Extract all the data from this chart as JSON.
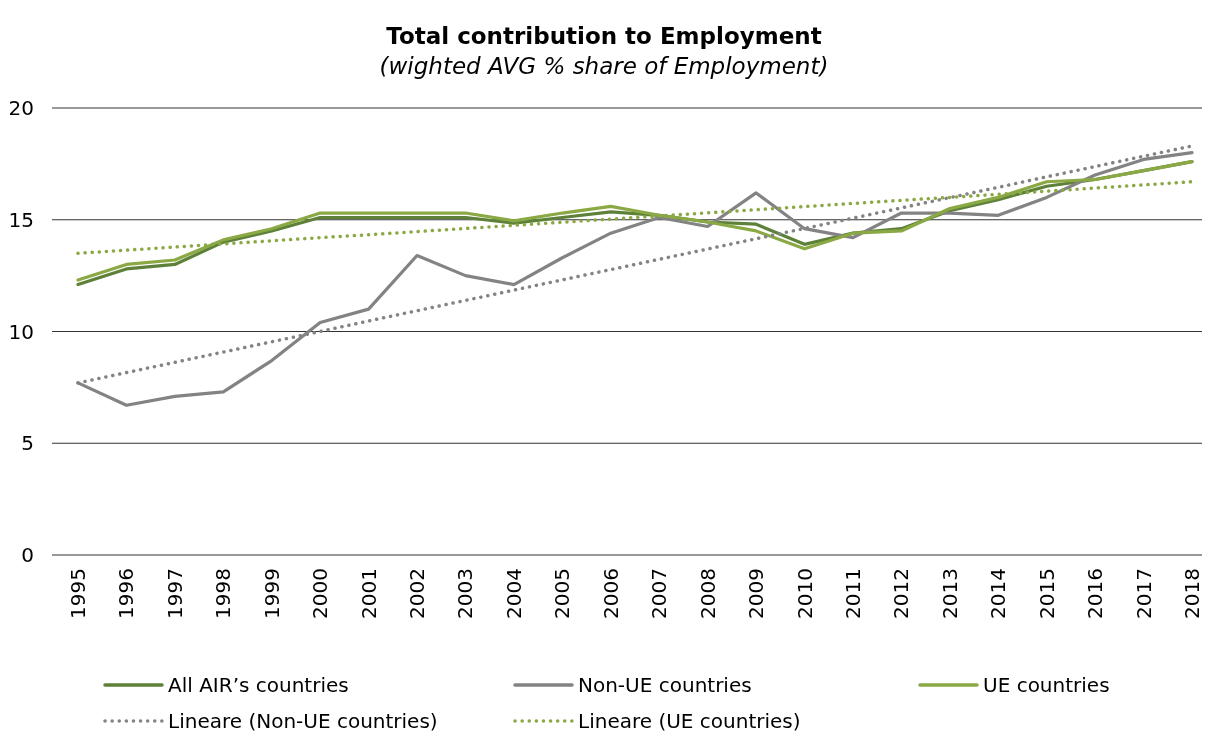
{
  "chart_data": {
    "type": "line",
    "title": "Total contribution to Employment",
    "subtitle": "(wighted AVG % share of Employment)",
    "categories": [
      "1995",
      "1996",
      "1997",
      "1998",
      "1999",
      "2000",
      "2001",
      "2002",
      "2003",
      "2004",
      "2005",
      "2006",
      "2007",
      "2008",
      "2009",
      "2010",
      "2011",
      "2012",
      "2013",
      "2014",
      "2015",
      "2016",
      "2017",
      "2018"
    ],
    "series": [
      {
        "name": "All AIR’s countries",
        "color": "#5e8139",
        "values": [
          12.1,
          12.8,
          13.0,
          14.0,
          14.5,
          15.1,
          15.1,
          15.1,
          15.1,
          14.85,
          15.1,
          15.35,
          15.2,
          14.9,
          14.8,
          13.9,
          14.4,
          14.6,
          15.4,
          15.9,
          16.5,
          16.8,
          17.2,
          17.6
        ]
      },
      {
        "name": "Non-UE countries",
        "color": "#838383",
        "values": [
          7.7,
          6.7,
          7.1,
          7.3,
          8.7,
          10.4,
          11.0,
          13.4,
          12.5,
          12.1,
          13.3,
          14.4,
          15.1,
          14.7,
          16.2,
          14.6,
          14.2,
          15.3,
          15.3,
          15.2,
          16.0,
          17.0,
          17.7,
          18.0
        ]
      },
      {
        "name": "UE countries",
        "color": "#8aa843",
        "values": [
          12.3,
          13.0,
          13.2,
          14.1,
          14.6,
          15.3,
          15.3,
          15.3,
          15.3,
          14.95,
          15.3,
          15.6,
          15.2,
          14.9,
          14.5,
          13.7,
          14.4,
          14.5,
          15.5,
          16.0,
          16.7,
          16.8,
          17.2,
          17.6
        ]
      },
      {
        "name": "Lineare (Non-UE countries)",
        "color": "#838383",
        "line_style": "dotted",
        "values": [
          7.7,
          8.16,
          8.62,
          9.08,
          9.54,
          10.0,
          10.47,
          10.93,
          11.39,
          11.85,
          12.31,
          12.77,
          13.23,
          13.69,
          14.15,
          14.61,
          15.07,
          15.53,
          15.99,
          16.45,
          16.92,
          17.38,
          17.84,
          18.3
        ]
      },
      {
        "name": "Lineare (UE countries)",
        "color": "#8aa843",
        "line_style": "dotted",
        "values": [
          13.5,
          13.64,
          13.78,
          13.92,
          14.06,
          14.2,
          14.33,
          14.47,
          14.61,
          14.75,
          14.89,
          15.03,
          15.17,
          15.31,
          15.45,
          15.59,
          15.73,
          15.87,
          16.0,
          16.14,
          16.28,
          16.42,
          16.56,
          16.7
        ]
      }
    ],
    "ylim": [
      0,
      20
    ],
    "yticks": [
      0,
      5,
      10,
      15,
      20
    ],
    "grid": "y",
    "legend": "bottom",
    "marker": "none",
    "line_style": "solid"
  }
}
